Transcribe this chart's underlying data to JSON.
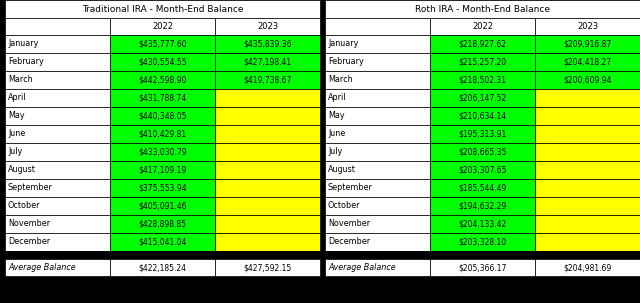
{
  "trad_title": "Traditional IRA - Month-End Balance",
  "roth_title": "Roth IRA - Month-End Balance",
  "months": [
    "January",
    "February",
    "March",
    "April",
    "May",
    "June",
    "July",
    "August",
    "September",
    "October",
    "November",
    "December"
  ],
  "trad_2022": [
    "$435,777.60",
    "$430,554.55",
    "$442,598.90",
    "$431,788.74",
    "$440,348.05",
    "$410,429.81",
    "$433,030.79",
    "$417,109.19",
    "$375,553.94",
    "$405,091.46",
    "$428,898.85",
    "$415,041.04"
  ],
  "trad_2023": [
    "$435,839.36",
    "$427,198.41",
    "$419,738.67",
    "",
    "",
    "",
    "",
    "",
    "",
    "",
    "",
    ""
  ],
  "roth_2022": [
    "$218,927.62",
    "$215,257.20",
    "$218,502.31",
    "$206,147.52",
    "$210,634.14",
    "$195,313.91",
    "$208,665.35",
    "$203,307.65",
    "$185,544.49",
    "$194,632.29",
    "$204,133.42",
    "$203,328.10"
  ],
  "roth_2023": [
    "$209,916.87",
    "$204,418.27",
    "$200,609.94",
    "",
    "",
    "",
    "",
    "",
    "",
    "",
    "",
    ""
  ],
  "trad_avg_2022": "$422,185.24",
  "trad_avg_2023": "$427,592.15",
  "roth_avg_2022": "$205,366.17",
  "roth_avg_2023": "$204,981.69",
  "col_header_2022": "2022",
  "col_header_2023": "2023",
  "avg_label": "Average Balance",
  "color_green": "#00FF00",
  "color_yellow": "#FFFF00",
  "color_white": "#FFFFFF",
  "color_black": "#000000",
  "trad_2022_colors": [
    "green",
    "green",
    "green",
    "green",
    "green",
    "green",
    "green",
    "green",
    "green",
    "green",
    "green",
    "green"
  ],
  "trad_2023_colors": [
    "green",
    "green",
    "green",
    "yellow",
    "yellow",
    "yellow",
    "yellow",
    "yellow",
    "yellow",
    "yellow",
    "yellow",
    "yellow"
  ],
  "roth_2022_colors": [
    "green",
    "green",
    "green",
    "green",
    "green",
    "green",
    "green",
    "green",
    "green",
    "green",
    "green",
    "green"
  ],
  "roth_2023_colors": [
    "green",
    "green",
    "green",
    "yellow",
    "yellow",
    "yellow",
    "yellow",
    "yellow",
    "yellow",
    "yellow",
    "yellow",
    "yellow"
  ]
}
